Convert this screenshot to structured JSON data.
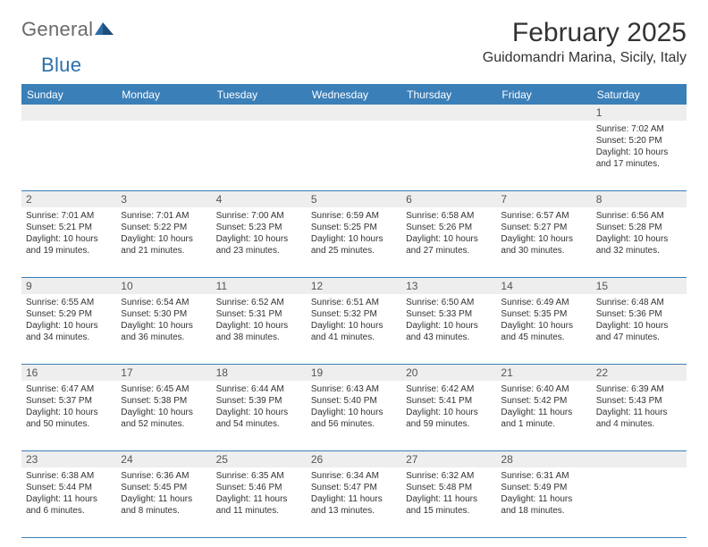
{
  "logo": {
    "text1": "General",
    "text2": "Blue"
  },
  "title": "February 2025",
  "location": "Guidomandri Marina, Sicily, Italy",
  "colors": {
    "header_bg": "#3b7fb8",
    "header_text": "#ffffff",
    "daynum_bg": "#eeeeee",
    "border": "#3b7fb8",
    "logo_gray": "#6a6a6a",
    "logo_blue": "#2b6ea8"
  },
  "day_names": [
    "Sunday",
    "Monday",
    "Tuesday",
    "Wednesday",
    "Thursday",
    "Friday",
    "Saturday"
  ],
  "weeks": [
    [
      null,
      null,
      null,
      null,
      null,
      null,
      {
        "n": "1",
        "sr": "Sunrise: 7:02 AM",
        "ss": "Sunset: 5:20 PM",
        "dl1": "Daylight: 10 hours",
        "dl2": "and 17 minutes."
      }
    ],
    [
      {
        "n": "2",
        "sr": "Sunrise: 7:01 AM",
        "ss": "Sunset: 5:21 PM",
        "dl1": "Daylight: 10 hours",
        "dl2": "and 19 minutes."
      },
      {
        "n": "3",
        "sr": "Sunrise: 7:01 AM",
        "ss": "Sunset: 5:22 PM",
        "dl1": "Daylight: 10 hours",
        "dl2": "and 21 minutes."
      },
      {
        "n": "4",
        "sr": "Sunrise: 7:00 AM",
        "ss": "Sunset: 5:23 PM",
        "dl1": "Daylight: 10 hours",
        "dl2": "and 23 minutes."
      },
      {
        "n": "5",
        "sr": "Sunrise: 6:59 AM",
        "ss": "Sunset: 5:25 PM",
        "dl1": "Daylight: 10 hours",
        "dl2": "and 25 minutes."
      },
      {
        "n": "6",
        "sr": "Sunrise: 6:58 AM",
        "ss": "Sunset: 5:26 PM",
        "dl1": "Daylight: 10 hours",
        "dl2": "and 27 minutes."
      },
      {
        "n": "7",
        "sr": "Sunrise: 6:57 AM",
        "ss": "Sunset: 5:27 PM",
        "dl1": "Daylight: 10 hours",
        "dl2": "and 30 minutes."
      },
      {
        "n": "8",
        "sr": "Sunrise: 6:56 AM",
        "ss": "Sunset: 5:28 PM",
        "dl1": "Daylight: 10 hours",
        "dl2": "and 32 minutes."
      }
    ],
    [
      {
        "n": "9",
        "sr": "Sunrise: 6:55 AM",
        "ss": "Sunset: 5:29 PM",
        "dl1": "Daylight: 10 hours",
        "dl2": "and 34 minutes."
      },
      {
        "n": "10",
        "sr": "Sunrise: 6:54 AM",
        "ss": "Sunset: 5:30 PM",
        "dl1": "Daylight: 10 hours",
        "dl2": "and 36 minutes."
      },
      {
        "n": "11",
        "sr": "Sunrise: 6:52 AM",
        "ss": "Sunset: 5:31 PM",
        "dl1": "Daylight: 10 hours",
        "dl2": "and 38 minutes."
      },
      {
        "n": "12",
        "sr": "Sunrise: 6:51 AM",
        "ss": "Sunset: 5:32 PM",
        "dl1": "Daylight: 10 hours",
        "dl2": "and 41 minutes."
      },
      {
        "n": "13",
        "sr": "Sunrise: 6:50 AM",
        "ss": "Sunset: 5:33 PM",
        "dl1": "Daylight: 10 hours",
        "dl2": "and 43 minutes."
      },
      {
        "n": "14",
        "sr": "Sunrise: 6:49 AM",
        "ss": "Sunset: 5:35 PM",
        "dl1": "Daylight: 10 hours",
        "dl2": "and 45 minutes."
      },
      {
        "n": "15",
        "sr": "Sunrise: 6:48 AM",
        "ss": "Sunset: 5:36 PM",
        "dl1": "Daylight: 10 hours",
        "dl2": "and 47 minutes."
      }
    ],
    [
      {
        "n": "16",
        "sr": "Sunrise: 6:47 AM",
        "ss": "Sunset: 5:37 PM",
        "dl1": "Daylight: 10 hours",
        "dl2": "and 50 minutes."
      },
      {
        "n": "17",
        "sr": "Sunrise: 6:45 AM",
        "ss": "Sunset: 5:38 PM",
        "dl1": "Daylight: 10 hours",
        "dl2": "and 52 minutes."
      },
      {
        "n": "18",
        "sr": "Sunrise: 6:44 AM",
        "ss": "Sunset: 5:39 PM",
        "dl1": "Daylight: 10 hours",
        "dl2": "and 54 minutes."
      },
      {
        "n": "19",
        "sr": "Sunrise: 6:43 AM",
        "ss": "Sunset: 5:40 PM",
        "dl1": "Daylight: 10 hours",
        "dl2": "and 56 minutes."
      },
      {
        "n": "20",
        "sr": "Sunrise: 6:42 AM",
        "ss": "Sunset: 5:41 PM",
        "dl1": "Daylight: 10 hours",
        "dl2": "and 59 minutes."
      },
      {
        "n": "21",
        "sr": "Sunrise: 6:40 AM",
        "ss": "Sunset: 5:42 PM",
        "dl1": "Daylight: 11 hours",
        "dl2": "and 1 minute."
      },
      {
        "n": "22",
        "sr": "Sunrise: 6:39 AM",
        "ss": "Sunset: 5:43 PM",
        "dl1": "Daylight: 11 hours",
        "dl2": "and 4 minutes."
      }
    ],
    [
      {
        "n": "23",
        "sr": "Sunrise: 6:38 AM",
        "ss": "Sunset: 5:44 PM",
        "dl1": "Daylight: 11 hours",
        "dl2": "and 6 minutes."
      },
      {
        "n": "24",
        "sr": "Sunrise: 6:36 AM",
        "ss": "Sunset: 5:45 PM",
        "dl1": "Daylight: 11 hours",
        "dl2": "and 8 minutes."
      },
      {
        "n": "25",
        "sr": "Sunrise: 6:35 AM",
        "ss": "Sunset: 5:46 PM",
        "dl1": "Daylight: 11 hours",
        "dl2": "and 11 minutes."
      },
      {
        "n": "26",
        "sr": "Sunrise: 6:34 AM",
        "ss": "Sunset: 5:47 PM",
        "dl1": "Daylight: 11 hours",
        "dl2": "and 13 minutes."
      },
      {
        "n": "27",
        "sr": "Sunrise: 6:32 AM",
        "ss": "Sunset: 5:48 PM",
        "dl1": "Daylight: 11 hours",
        "dl2": "and 15 minutes."
      },
      {
        "n": "28",
        "sr": "Sunrise: 6:31 AM",
        "ss": "Sunset: 5:49 PM",
        "dl1": "Daylight: 11 hours",
        "dl2": "and 18 minutes."
      },
      null
    ]
  ]
}
